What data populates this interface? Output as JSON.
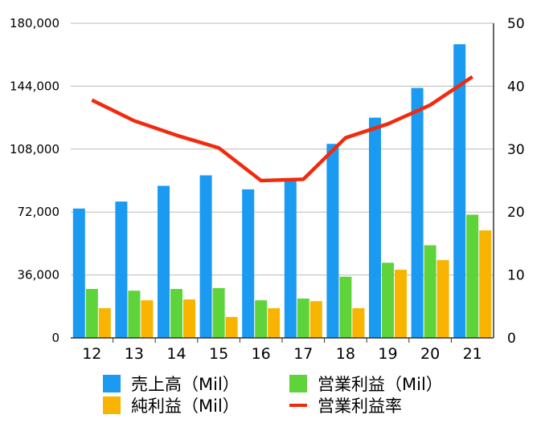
{
  "chart_data": {
    "type": "bar",
    "categories": [
      "12",
      "13",
      "14",
      "15",
      "16",
      "17",
      "18",
      "19",
      "20",
      "21"
    ],
    "y_left": {
      "ticks": [
        "0",
        "36,000",
        "72,000",
        "108,000",
        "144,000",
        "180,000"
      ],
      "ylim": [
        0,
        180000
      ]
    },
    "y_right": {
      "ticks": [
        "0",
        "10",
        "20",
        "30",
        "40",
        "50"
      ],
      "ylim": [
        0,
        50
      ]
    },
    "grid": true,
    "legend_position": "bottom",
    "series": [
      {
        "name": "売上高（Mil）",
        "kind": "bar",
        "axis": "left",
        "color": "#1a9af0",
        "values": [
          74000,
          78000,
          87000,
          93000,
          85000,
          90000,
          111000,
          126000,
          143000,
          168000
        ]
      },
      {
        "name": "営業利益（Mil）",
        "kind": "bar",
        "axis": "left",
        "color": "#5fd33a",
        "values": [
          28000,
          27000,
          28000,
          28500,
          21500,
          22500,
          35000,
          43000,
          53000,
          70500
        ]
      },
      {
        "name": "純利益（Mil）",
        "kind": "bar",
        "axis": "left",
        "color": "#f8b400",
        "values": [
          17000,
          21500,
          22000,
          12000,
          17000,
          21000,
          17000,
          39000,
          44500,
          61500
        ]
      },
      {
        "name": "営業利益率",
        "kind": "line",
        "axis": "right",
        "color": "#f22a0d",
        "values": [
          37.8,
          34.5,
          32.2,
          30.2,
          25.0,
          25.2,
          31.8,
          34.0,
          37.0,
          41.5
        ]
      }
    ]
  }
}
